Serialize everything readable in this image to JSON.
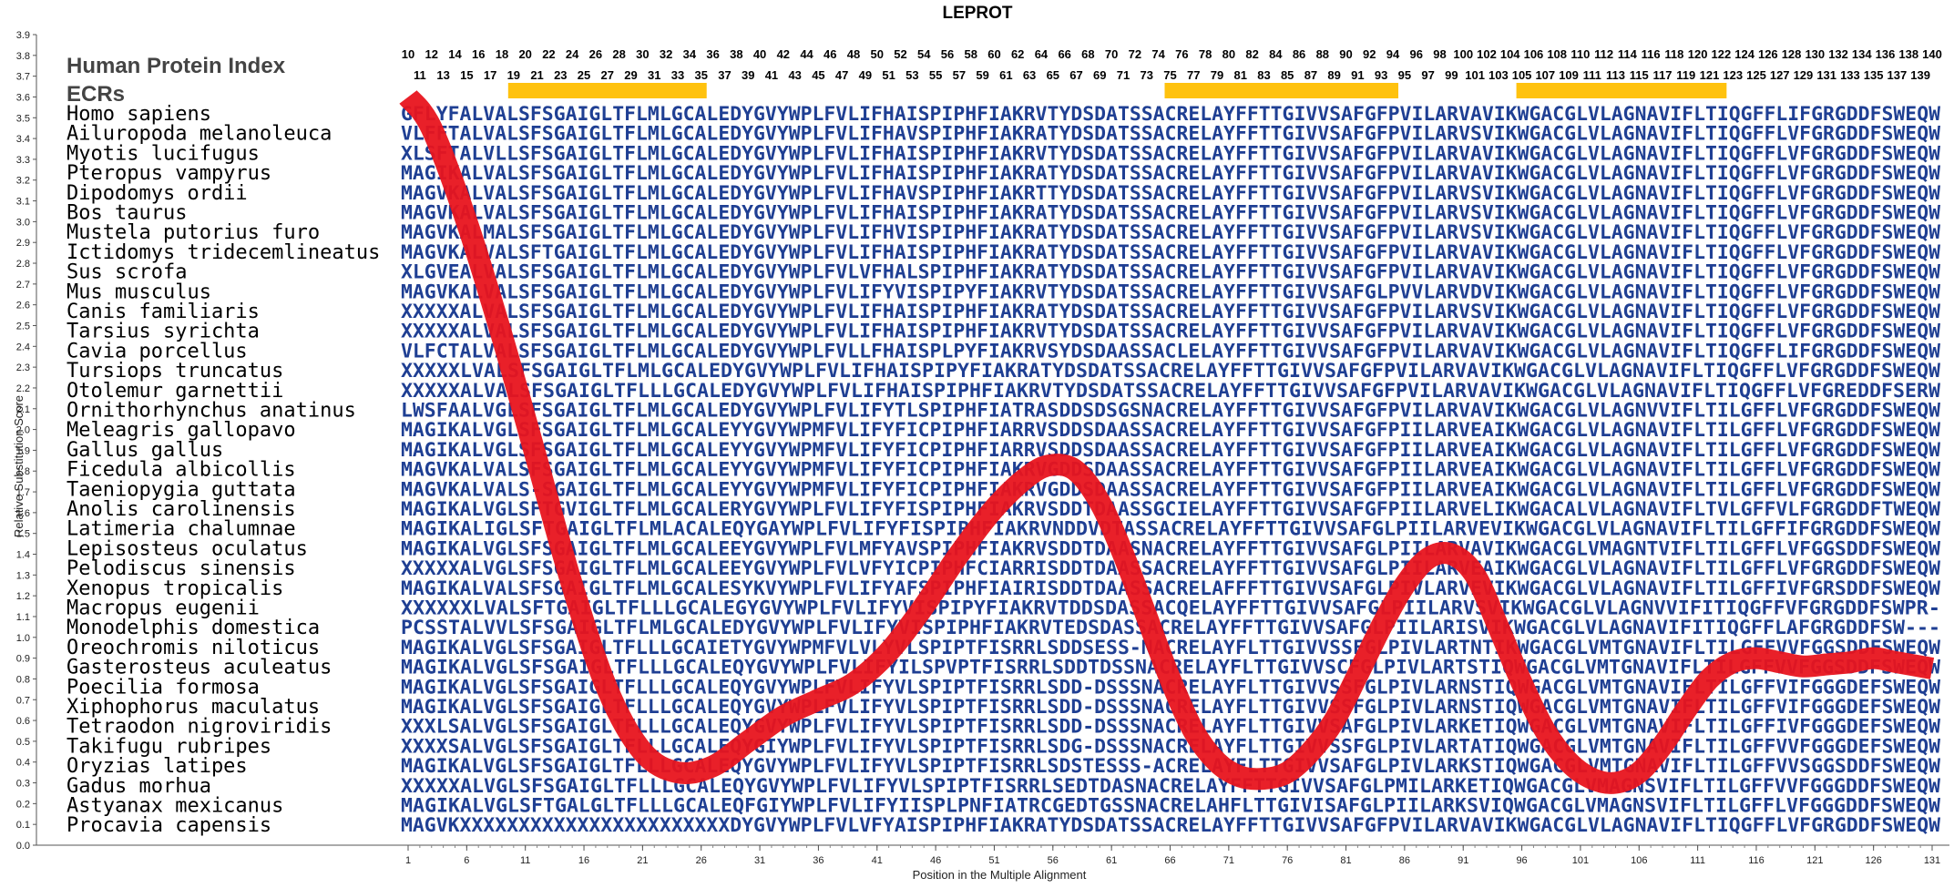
{
  "chart_data": {
    "type": "line",
    "title": "LEPROT",
    "xlabel": "Position in the Multiple Alignment",
    "ylabel": "Relative Substitution Score",
    "ylim": [
      0.0,
      3.9
    ],
    "xlim": [
      1,
      131
    ],
    "y_ticks": [
      "0.0",
      "0.1",
      "0.2",
      "0.3",
      "0.4",
      "0.5",
      "0.6",
      "0.7",
      "0.8",
      "0.9",
      "1.0",
      "1.1",
      "1.2",
      "1.3",
      "1.4",
      "1.5",
      "1.6",
      "1.7",
      "1.8",
      "1.9",
      "2.0",
      "2.1",
      "2.2",
      "2.3",
      "2.4",
      "2.5",
      "2.6",
      "2.7",
      "2.8",
      "2.9",
      "3.0",
      "3.1",
      "3.2",
      "3.3",
      "3.4",
      "3.5",
      "3.6",
      "3.7",
      "3.8",
      "3.9"
    ],
    "x_ticks": [
      1,
      6,
      11,
      16,
      21,
      26,
      31,
      36,
      41,
      46,
      51,
      56,
      61,
      66,
      71,
      76,
      81,
      86,
      91,
      96,
      101,
      106,
      111,
      116,
      121,
      126,
      131
    ],
    "series": [
      {
        "x": [
          1,
          3,
          6,
          9,
          12,
          15,
          18,
          21,
          24,
          27,
          30,
          33,
          36,
          39,
          42,
          45,
          48,
          51,
          54,
          56,
          58,
          60,
          62,
          64,
          66,
          68,
          70,
          72,
          74,
          76,
          78,
          80,
          82,
          84,
          86,
          88,
          90,
          92,
          94,
          96,
          98,
          100,
          102,
          104,
          106,
          108,
          110,
          112,
          114,
          116,
          118,
          120,
          122,
          124,
          126,
          128,
          131
        ],
        "y": [
          3.6,
          3.45,
          3.0,
          2.45,
          1.85,
          1.25,
          0.75,
          0.45,
          0.35,
          0.38,
          0.5,
          0.62,
          0.7,
          0.78,
          0.93,
          1.15,
          1.4,
          1.62,
          1.78,
          1.83,
          1.8,
          1.65,
          1.4,
          1.1,
          0.8,
          0.55,
          0.4,
          0.33,
          0.32,
          0.35,
          0.45,
          0.6,
          0.82,
          1.05,
          1.25,
          1.38,
          1.4,
          1.3,
          1.05,
          0.78,
          0.55,
          0.4,
          0.32,
          0.3,
          0.35,
          0.48,
          0.65,
          0.8,
          0.88,
          0.9,
          0.88,
          0.86,
          0.87,
          0.88,
          0.9,
          0.88,
          0.85
        ]
      }
    ],
    "top_numbers_row1": [
      10,
      12,
      14,
      16,
      18,
      20,
      22,
      24,
      26,
      28,
      30,
      32,
      34,
      36,
      38,
      40,
      42,
      44,
      46,
      48,
      50,
      52,
      54,
      56,
      58,
      60,
      62,
      64,
      66,
      68,
      70,
      72,
      74,
      76,
      78,
      80,
      82,
      84,
      86,
      88,
      90,
      92,
      94,
      96,
      98,
      100,
      102,
      104,
      106,
      108,
      110,
      112,
      114,
      116,
      118,
      120,
      122,
      124,
      126,
      128,
      130,
      132,
      134,
      136,
      138,
      140
    ],
    "top_numbers_row2": [
      11,
      13,
      15,
      17,
      19,
      21,
      23,
      25,
      27,
      29,
      31,
      33,
      35,
      37,
      39,
      41,
      43,
      45,
      47,
      49,
      51,
      53,
      55,
      57,
      59,
      61,
      63,
      65,
      67,
      69,
      71,
      73,
      75,
      77,
      79,
      81,
      83,
      85,
      87,
      89,
      91,
      93,
      95,
      97,
      99,
      101,
      103,
      105,
      107,
      109,
      111,
      113,
      115,
      117,
      119,
      121,
      123,
      125,
      127,
      129,
      131,
      133,
      135,
      137,
      139
    ],
    "ecr_regions": [
      [
        19,
        35
      ],
      [
        75,
        94
      ],
      [
        105,
        122
      ]
    ],
    "colors": {
      "line": "#e8141e",
      "ecr": "#ffc20e",
      "residue_conserved": "#1f3f93",
      "residue_variable": "#9fbfb0",
      "residue_medium": "#3a6fb5"
    }
  },
  "labels": {
    "index_title": "Human Protein Index",
    "ecrs": "ECRs"
  },
  "alignment": [
    {
      "species": "Homo sapiens",
      "seq": "GFLYFALVALSFSGAIGLTFLMLGCALEDYGVYWPLFVLIFHAISPIPHFIAKRVTYDSDATSSACRELAYFFTTGIVVSAFGFPVILARVAVIKWGACGLVLAGNAVIFLTIQGFFLIFGRGDDFSWEQW"
    },
    {
      "species": "Ailuropoda melanoleuca",
      "seq": "VLFFTALVALSFSGAIGLTFLMLGCALEDYGVYWPLFVLIFHAVSPIPHFIAKRATYDSDATSSACRELAYFFTTGIVVSAFGFPVILARVSVIKWGACGLVLAGNAVIFLTIQGFFLVFGRGDDFSWEQW"
    },
    {
      "species": "Myotis lucifugus",
      "seq": "XLSFTALVLLSFSGAIGLTFLMLGCALEDYGVYWPLFVLIFHAISPIPHFIAKRVTYDSDATSSACRELAYFFTTGIVVSAFGFPVILARVAVIKWGACGLVLAGNAVIFLTIQGFFLVFGRGDDFSWEQW"
    },
    {
      "species": "Pteropus vampyrus",
      "seq": "MAGIKALVALSFSGAIGLTFLMLGCALEDYGVYWPLFVLIFHAISPIPHFIAKRATYDSDATSSACRELAYFFTTGIVVSAFGFPVILARVAVIKWGACGLVLAGNAVIFLTIQGFFLVFGRGDDFSWEQW"
    },
    {
      "species": "Dipodomys ordii",
      "seq": "MAGVKALVALSFSGAIGLTFLMLGCALEDYGVYWPLFVLIFHAVSPIPHFIAKRTTYDSDATSSACRELAYFFTTGIVVSAFGFPVILARVSVIKWGACGLVLAGNAVIFLTIQGFFLVFGRGDDFSWEQW"
    },
    {
      "species": "Bos taurus",
      "seq": "MAGVKALVALSFSGAIGLTFLMLGCALEDYGVYWPLFVLIFHAISPIPHFIAKRATYDSDATSSACRELAYFFTTGIVVSAFGFPVILARVSVIKWGACGLVLAGNAVIFLTIQGFFLVFGRGDDFSWEQW"
    },
    {
      "species": "Mustela putorius furo",
      "seq": "MAGVKALMALSFSGAIGLTFLMLGCALEDYGVYWPLFVLIFHVISPIPHFIAKRATYDSDATSSACRELAYFFTTGIVVSAFGFPVILARVSVIKWGACGLVLAGNAVIFLTIQGFFLVFGRGDDFSWEQW"
    },
    {
      "species": "Ictidomys tridecemlineatus",
      "seq": "MAGVKALVALSFTGAIGLTFLMLGCALEDYGVYWPLFVLIFHAISPIPHFIAKRATYDSDATSSACRELAYFFTTGIVVSAFGFPVILARVAVIKWGACGLVLAGNAVIFLTIQGFFLVFGRGDDFSWEQW"
    },
    {
      "species": "Sus scrofa",
      "seq": "XLGVEALVALSFSGAIGLTFLMLGCALEDYGVYWPLFVLVFHALSPIPHFIAKRATYDSDATSSACRELAYFFTTGIVVSAFGFPVILARVAVIKWGACGLVLAGNAVIFLTIQGFFLVFGRGDDFSWEQW"
    },
    {
      "species": "Mus musculus",
      "seq": "MAGVKALVALSFSGAIGLTFLMLGCALEDYGVYWPLFVLIFYVISPIPYFIAKRVTYDSDATSSACRELAYFFTTGIVVSAFGLPVVLARVDVIKWGACGLVLAGNAVIFLTIQGFFLVFGRGDDFSWEQW"
    },
    {
      "species": "Canis familiaris",
      "seq": "XXXXXALVALSFSGAIGLTFLMLGCALEDYGVYWPLFVLIFHAISPIPHFIAKRATYDSDATSSACRELAYFFTTGIVVSAFGFPVILARVSVIKWGACGLVLAGNAVIFLTIQGFFLVFGRGDDFSWEQW"
    },
    {
      "species": "Tarsius syrichta",
      "seq": "XXXXXALVALSFSGAIGLTFLMLGCALEDYGVYWPLFVLIFHAISPIPHFIAKRVTYDSDATSSACRELAYFFTTGIVVSAFGFPVILARVAVIKWGACGLVLAGNAVIFLTIQGFFLVFGRGDDFSWEQW"
    },
    {
      "species": "Cavia porcellus",
      "seq": "VLFCTALVALSFSGAIGLTFLMLGCALEDYGVYWPLFVLLFHAISPLPYFIAKRVSYDSDAASSACLELAYFFTTGIVVSAFGFPVILARVAVIKWGACGLVLAGNAVIFLTIQGFFLIFGRGDDFSWEQW"
    },
    {
      "species": "Tursiops truncatus",
      "seq": "XXXXXLVALSFSGAIGLTFLMLGCALEDYGVYWPLFVLIFHAISPIPYFIAKRATYDSDATSSACRELAYFFTTGIVVSAFGFPVILARVAVIKWGACGLVLAGNAVIFLTIQGFFLVFGRGDDFSWEQW"
    },
    {
      "species": "Otolemur garnettii",
      "seq": "XXXXXALVALSFSGAIGLTFLLLGCALEDYGVYWPLFVLIFHAISPIPHFIAKRVTYDSDATSSACRELAYFFTTGIVVSAFGFPVILARVAVIKWGACGLVLAGNAVIFLTIQGFFLVFGREDDFSERW"
    },
    {
      "species": "Ornithorhynchus anatinus",
      "seq": "LWSFAALVGLSFSGAIGLTFLMLGCALEDYGVYWPLFVLIFYTLSPIPHFIATRASDDSDSGSNACRELAYFFTTGIVVSAFGFPVILARVAVIKWGACGLVLAGNVVIFLTILGFFLVFGRGDDFSWEQW"
    },
    {
      "species": "Meleagris gallopavo",
      "seq": "MAGIKALVGLSFSGAIGLTFLMLGCALEYYGVYWPMFVLIFYFICPIPHFIARRVSDDSDAASSACRELAYFFTTGIVVSAFGFPIILARVEAIKWGACGLVLAGNAVIFLTILGFFLVFGRGDDFSWEQW"
    },
    {
      "species": "Gallus gallus",
      "seq": "MAGIKALVGLSFSGAIGLTFLMLGCALEYYGVYWPMFVLIFYFICPIPHFIARRVSDDSDAASSACRELAYFFTTGIVVSAFGFPIILARVEAIKWGACGLVLAGNAVIFLTILGFFLVFGRGDDFSWEQW"
    },
    {
      "species": "Ficedula albicollis",
      "seq": "MAGVKALVALSFSGAIGLTFLMLGCALEYYGVYWPMFVLIFYFICPIPHFIAKRVGDDSDAASSACRELAYFFTTGIVVSAFGFPIILARVEAIKWGACGLVLAGNAVIFLTILGFFLVFGRGDDFSWEQW"
    },
    {
      "species": "Taeniopygia guttata",
      "seq": "MAGVKALVALS-SGAIGLTFLMLGCALEYYGVYWPMFVLIFYFICPIPHFIAKRVGDDSDAASSACRELAYFFTTGIVVSAFGFPIILARVEAIKWGACGLVLAGNAVIFLTILGFFLVFGRGDDFSWEQW"
    },
    {
      "species": "Anolis carolinensis",
      "seq": "MAGIKALVGLSFTGVIGLTFLMLGCALERYGVYWPLFVLIFYFISPIPHFIAKRVSDDTDAASSGCIELAYFFTTGIVVSAFGFPIILARVELIKWGACALVLAGNAVIFLTVLGFFVLFGRGDDFTWEQW"
    },
    {
      "species": "Latimeria chalumnae",
      "seq": "MAGIKALIGLSFTGAIGLTFLMLACALEQYGAYWPLFVLIFYFISPIPHFIAKRVNDDVDTASSACRELAYFFTTGIVVSAFGLPIILARVEVIKWGACGLVLAGNAVIFLTILGFFIFGRGDDFSWEQW"
    },
    {
      "species": "Lepisosteus oculatus",
      "seq": "MAGIKALVGLSFSGAIGLTFLMLGCALEEYGVYWPLFVLMFYAVSPIPHFIAKRVSDDTDAASNACRELAYFFTTGIVVSAFGLPIILARVAVIKWGACGLVMAGNTVIFLTILGFFLVFGGSDDFSWEQW"
    },
    {
      "species": "Pelodiscus sinensis",
      "seq": "XXXXXALVGLSFSGAIGLTFLMLGCALEEYGVYWPLFVLVFYICPIPHFCIARRISDDTDAASSACRELAYFFTTGIVVSAFGLPIILARVEAIKWGACGLVLAGNAVIFLTILGFFLVFGRGDDFSWEQW"
    },
    {
      "species": "Xenopus tropicalis",
      "seq": "MAGIKALVALSFSGAIGLTFLMLGCALESYKVYWPLFVLIFYAFSPIPHFIAIRISDDTDAASSACRELAFFFTTGIVVSAFGLPIVLARVEVIKWGACGLVLAGNAVIFLTILGFFIVFGRSDDFSWEQW"
    },
    {
      "species": "Macropus eugenii",
      "seq": "XXXXXXLVALSFTGAIGLTFLLLGCALEGYGVYWPLFVLIFYVISPIPYFIAKRVTDDSDASSACQELAYFFTTGIVVSAFGLPIILARVSVIKWGACGLVLAGNVVIFITIQGFFVFGRGDDFSWPR-"
    },
    {
      "species": "Monodelphis domestica",
      "seq": "PCSSTALVVLSFSGAIGLTFLMLGCALEDYGVYWPLFVLIFYVISPIPHFIAKRVTEDSDASSACRELAYFFTTGIVVSAFGLPIILARISVIKWGACGLVLAGNAVIFITIQGFFLAFGRGDDFSW---"
    },
    {
      "species": "Oreochromis niloticus",
      "seq": "MAGIKALVGLSFSGAIGLTFLLLGCAIETYGVYWPMFVLVLYVLSPIPTFISRRLSDDSESS-NACRELAYFLTTGIVVSSFGLPIVLARTNTIKWGACGLVMTGNAVIFLTILGFFVVFGGSDDFSWEQW"
    },
    {
      "species": "Gasterosteus aculeatus",
      "seq": "MAGIKALVGLSFSGAIGLTFLLLGCALEQYGVYWPLFVLIFYILSPVPTFISRRLSDDTDSSNACRELAYFLTTGIVVSCFGLPIVLARTSTIQWGACGLVMTGNAVIFLTILGFFVVFGGSDDFSWEQW"
    },
    {
      "species": "Poecilia formosa",
      "seq": "MAGIKALVGLSFSGAIGLTFLLLGCALEQYGVYWPLFVLIFYVLSPIPTFISRRLSDD-DSSSNACRELAYFLTTGIVVSSFGLPIVLARNSTIQWGACGLVMTGNAVIFLTILGFFVIFGGGDEFSWEQW"
    },
    {
      "species": "Xiphophorus maculatus",
      "seq": "MAGIKALVGLSFSGAIGLTFLLLGCALEQYGVYWPLFVLIFYVLSPIPTFISRRLSDD-DSSSNACRELAYFLTTGIVVSSFGLPIVLARNSTIQWGACGLVMTGNAVIFLTILGFFVIFGGGDEFSWEQW"
    },
    {
      "species": "Tetraodon nigroviridis",
      "seq": "XXXLSALVGLSFSGAIGLTFLLLGCALEQYGVYWPLFVLIFYVLSPIPTFISRRLSDD-DSSSNACRELAYFLTTGIVVSAFGLPIVLARKETIQWGACGLVMTGNAVIFLTILGFFIVFGGGDEFSWEQW"
    },
    {
      "species": "Takifugu rubripes",
      "seq": "XXXXSALVGLSFSGAIGLTFLLLGCALEQYGIYWPLFVLIFYVLSPIPTFISRRLSDG-DSSSNACRELAYFLTTGIVVSSFGLPIVLARTATIQWGACGLVMTGNAVIFLTILGFFVVFGGGDEFSWEQW"
    },
    {
      "species": "Oryzias latipes",
      "seq": "MAGIKALVGLSFSGAIGLTFLLLGCALEQYGVYWPLFVLIFYVLSPIPTFISRRLSDSTESSS-ACRELAYFLTTGIVVSAFGLPIVLARKSTIQWGACGLVMTGNAVIFLTILGFFVVSGGSDDFSWEQW"
    },
    {
      "species": "Gadus morhua",
      "seq": "XXXXXALVGLSFSGAIGLTFLLLGCALEQYGVYWPLFVLIFYVLSPIPTFISRRLSEDTDASNACRELAYFFTTGIVVSAFGLPMILARKETIQWGACGLVMAGNSVIFLTILGFFVVFGGGDDFSWEQW"
    },
    {
      "species": "Astyanax mexicanus",
      "seq": "MAGIKALVGLSFTGALGLTFLLLGCALEQFGIYWPLFVLIFYIISPLPNFIATRCGEDTGSSNACRELAHFLTTGIVISAFGLPIILARKSVIQWGACGLVMAGNSVIFLTILGFFLVFGGGDDFSWEQW"
    },
    {
      "species": "Procavia capensis",
      "seq": "MAGVKXXXXXXXXXXXXXXXXXXXXXXXDYGVYWPLFVLVFYAISPIPHFIAKRATYDSDATSSACRELAYFFTTGIVVSAFGFPVILARVAVIKWGACGLVLAGNAVIFLTIQGFFLVFGRGDDFSWEQW"
    }
  ]
}
